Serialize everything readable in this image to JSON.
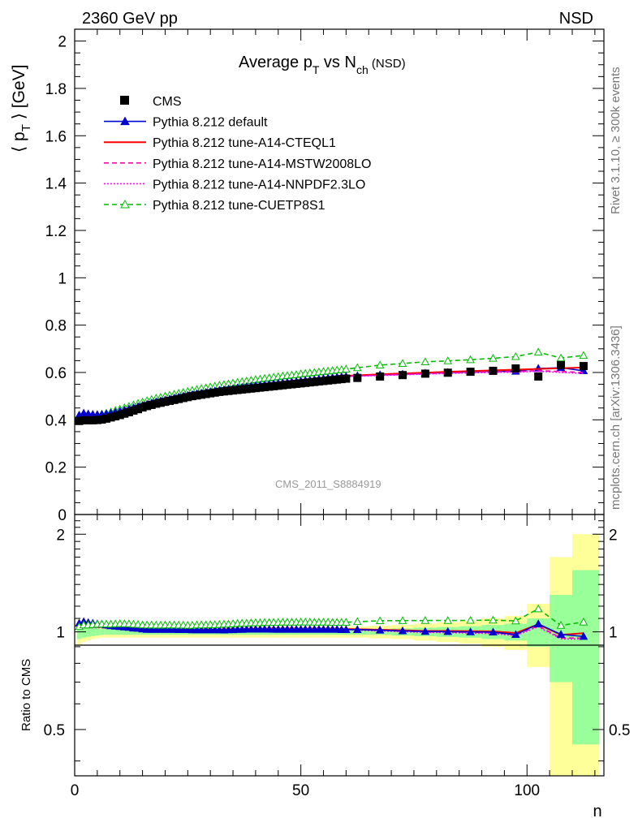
{
  "header": {
    "left": "2360 GeV pp",
    "right": "NSD"
  },
  "side_labels": {
    "rivet": "Rivet 3.1.10, ≥ 300k events",
    "mcplots": "mcplots.cern.ch [arXiv:1306.3436]"
  },
  "chart_data": [
    {
      "type": "scatter",
      "title": "Average pT vs Nch (NSD)",
      "title_parts": {
        "main": "Average p",
        "sub1": "T",
        "mid": " vs N",
        "sub2": "ch",
        "tail": " (NSD)"
      },
      "ylabel": "⟨ pT ⟩ [GeV]",
      "ylabel_parts": {
        "open": "⟨ p",
        "sub": "T",
        "close": " ⟩ [GeV]"
      },
      "xlabel": "n",
      "watermark": "CMS_2011_S8884919",
      "xlim": [
        0,
        117
      ],
      "ylim": [
        0,
        2.05
      ],
      "yticks": [
        {
          "v": 0,
          "label": "0"
        },
        {
          "v": 0.2,
          "label": "0.2"
        },
        {
          "v": 0.4,
          "label": "0.4"
        },
        {
          "v": 0.6,
          "label": "0.6"
        },
        {
          "v": 0.8,
          "label": "0.8"
        },
        {
          "v": 1,
          "label": "1"
        },
        {
          "v": 1.2,
          "label": "1.2"
        },
        {
          "v": 1.4,
          "label": "1.4"
        },
        {
          "v": 1.6,
          "label": "1.6"
        },
        {
          "v": 1.8,
          "label": "1.8"
        },
        {
          "v": 2,
          "label": "2"
        }
      ],
      "x": [
        1,
        2,
        3,
        4,
        5,
        6,
        7,
        8,
        9,
        10,
        11,
        12,
        13,
        14,
        15,
        16,
        17,
        18,
        19,
        20,
        21,
        22,
        23,
        24,
        25,
        26,
        27,
        28,
        29,
        30,
        31,
        32,
        33,
        34,
        35,
        36,
        37,
        38,
        39,
        40,
        41,
        42,
        43,
        44,
        45,
        46,
        47,
        48,
        49,
        50,
        51,
        52,
        53,
        54,
        55,
        56,
        57,
        58,
        59,
        60,
        62.5,
        67.5,
        72.5,
        77.5,
        82.5,
        87.5,
        92.5,
        97.5,
        102.5,
        107.5,
        112.5
      ],
      "legend": [
        {
          "name": "CMS",
          "color": "#000000",
          "style": "data"
        },
        {
          "name": "Pythia 8.212 default",
          "color": "#0000cc",
          "style": "solid-triangle"
        },
        {
          "name": "Pythia 8.212 tune-A14-CTEQL1",
          "color": "#ff0000",
          "style": "solid"
        },
        {
          "name": "Pythia 8.212 tune-A14-MSTW2008LO",
          "color": "#ff00aa",
          "style": "dashed"
        },
        {
          "name": "Pythia 8.212 tune-A14-NNPDF2.3LO",
          "color": "#ff00ff",
          "style": "dotted"
        },
        {
          "name": "Pythia 8.212 tune-CUETP8S1",
          "color": "#00bb00",
          "style": "dashed-open-triangle"
        }
      ],
      "series": [
        {
          "name": "CMS",
          "values": [
            0.395,
            0.398,
            0.398,
            0.398,
            0.399,
            0.401,
            0.405,
            0.41,
            0.415,
            0.42,
            0.426,
            0.432,
            0.439,
            0.445,
            0.452,
            0.458,
            0.463,
            0.468,
            0.472,
            0.476,
            0.48,
            0.484,
            0.488,
            0.492,
            0.496,
            0.5,
            0.503,
            0.506,
            0.509,
            0.512,
            0.515,
            0.518,
            0.52,
            0.522,
            0.524,
            0.526,
            0.528,
            0.53,
            0.532,
            0.534,
            0.536,
            0.538,
            0.54,
            0.542,
            0.544,
            0.546,
            0.548,
            0.55,
            0.552,
            0.554,
            0.556,
            0.558,
            0.56,
            0.562,
            0.564,
            0.566,
            0.568,
            0.57,
            0.572,
            0.574,
            0.577,
            0.583,
            0.589,
            0.595,
            0.599,
            0.603,
            0.607,
            0.617,
            0.583,
            0.631,
            0.627
          ]
        },
        {
          "name": "Pythia 8.212 default",
          "values": [
            0.42,
            0.428,
            0.425,
            0.423,
            0.422,
            0.423,
            0.425,
            0.428,
            0.432,
            0.436,
            0.441,
            0.446,
            0.451,
            0.456,
            0.461,
            0.466,
            0.471,
            0.476,
            0.48,
            0.484,
            0.488,
            0.492,
            0.496,
            0.5,
            0.504,
            0.507,
            0.51,
            0.513,
            0.516,
            0.519,
            0.522,
            0.525,
            0.527,
            0.53,
            0.532,
            0.535,
            0.537,
            0.54,
            0.542,
            0.544,
            0.546,
            0.548,
            0.55,
            0.552,
            0.554,
            0.556,
            0.558,
            0.56,
            0.562,
            0.564,
            0.566,
            0.568,
            0.57,
            0.572,
            0.574,
            0.576,
            0.578,
            0.58,
            0.581,
            0.583,
            0.586,
            0.59,
            0.593,
            0.597,
            0.6,
            0.603,
            0.606,
            0.605,
            0.617,
            0.62,
            0.607
          ]
        },
        {
          "name": "Pythia 8.212 tune-A14-CTEQL1",
          "values": [
            0.405,
            0.412,
            0.412,
            0.412,
            0.413,
            0.415,
            0.418,
            0.422,
            0.426,
            0.431,
            0.436,
            0.441,
            0.447,
            0.453,
            0.458,
            0.464,
            0.469,
            0.474,
            0.478,
            0.483,
            0.487,
            0.491,
            0.495,
            0.499,
            0.503,
            0.507,
            0.51,
            0.514,
            0.517,
            0.52,
            0.523,
            0.526,
            0.529,
            0.531,
            0.534,
            0.536,
            0.539,
            0.541,
            0.544,
            0.546,
            0.548,
            0.55,
            0.553,
            0.555,
            0.557,
            0.559,
            0.561,
            0.563,
            0.565,
            0.567,
            0.569,
            0.571,
            0.573,
            0.575,
            0.577,
            0.579,
            0.581,
            0.583,
            0.584,
            0.586,
            0.588,
            0.592,
            0.596,
            0.599,
            0.603,
            0.606,
            0.609,
            0.612,
            0.615,
            0.618,
            0.621
          ]
        },
        {
          "name": "Pythia 8.212 tune-A14-MSTW2008LO",
          "values": [
            0.404,
            0.411,
            0.411,
            0.411,
            0.412,
            0.414,
            0.417,
            0.421,
            0.425,
            0.43,
            0.435,
            0.44,
            0.446,
            0.452,
            0.457,
            0.463,
            0.468,
            0.473,
            0.477,
            0.482,
            0.486,
            0.49,
            0.494,
            0.498,
            0.502,
            0.506,
            0.509,
            0.513,
            0.516,
            0.519,
            0.522,
            0.525,
            0.528,
            0.53,
            0.533,
            0.535,
            0.538,
            0.54,
            0.543,
            0.545,
            0.547,
            0.549,
            0.552,
            0.554,
            0.556,
            0.558,
            0.56,
            0.562,
            0.564,
            0.566,
            0.568,
            0.57,
            0.572,
            0.574,
            0.576,
            0.578,
            0.58,
            0.582,
            0.583,
            0.585,
            0.586,
            0.589,
            0.592,
            0.595,
            0.598,
            0.601,
            0.603,
            0.604,
            0.608,
            0.604,
            0.6
          ]
        },
        {
          "name": "Pythia 8.212 tune-A14-NNPDF2.3LO",
          "values": [
            0.403,
            0.41,
            0.41,
            0.41,
            0.411,
            0.413,
            0.416,
            0.42,
            0.424,
            0.429,
            0.434,
            0.439,
            0.445,
            0.451,
            0.456,
            0.462,
            0.467,
            0.472,
            0.476,
            0.481,
            0.485,
            0.489,
            0.493,
            0.497,
            0.501,
            0.505,
            0.508,
            0.512,
            0.515,
            0.518,
            0.521,
            0.524,
            0.527,
            0.529,
            0.532,
            0.534,
            0.537,
            0.539,
            0.542,
            0.544,
            0.546,
            0.548,
            0.551,
            0.553,
            0.555,
            0.557,
            0.559,
            0.561,
            0.563,
            0.565,
            0.567,
            0.569,
            0.571,
            0.573,
            0.575,
            0.577,
            0.579,
            0.581,
            0.582,
            0.584,
            0.584,
            0.587,
            0.59,
            0.593,
            0.596,
            0.598,
            0.6,
            0.601,
            0.605,
            0.6,
            0.596
          ]
        },
        {
          "name": "Pythia 8.212 tune-CUETP8S1",
          "values": [
            0.41,
            0.418,
            0.418,
            0.419,
            0.421,
            0.424,
            0.428,
            0.433,
            0.439,
            0.445,
            0.451,
            0.457,
            0.463,
            0.469,
            0.475,
            0.481,
            0.486,
            0.491,
            0.495,
            0.5,
            0.504,
            0.508,
            0.512,
            0.516,
            0.52,
            0.524,
            0.528,
            0.532,
            0.535,
            0.539,
            0.542,
            0.546,
            0.549,
            0.552,
            0.555,
            0.558,
            0.561,
            0.564,
            0.567,
            0.57,
            0.572,
            0.575,
            0.577,
            0.58,
            0.582,
            0.585,
            0.587,
            0.589,
            0.591,
            0.594,
            0.596,
            0.598,
            0.6,
            0.602,
            0.604,
            0.606,
            0.608,
            0.61,
            0.612,
            0.614,
            0.62,
            0.631,
            0.638,
            0.645,
            0.649,
            0.654,
            0.66,
            0.667,
            0.686,
            0.661,
            0.672
          ]
        }
      ]
    },
    {
      "type": "scatter",
      "ylabel": "Ratio to CMS",
      "xlabel": "n",
      "xlim": [
        0,
        117
      ],
      "ylim": [
        0.36,
        2.3
      ],
      "log_y": true,
      "yticks": [
        {
          "v": 0.5,
          "label": "0.5"
        },
        {
          "v": 1,
          "label": "1"
        },
        {
          "v": 2,
          "label": "2"
        }
      ],
      "xticks": [
        {
          "v": 0,
          "label": "0"
        },
        {
          "v": 50,
          "label": "50"
        },
        {
          "v": 100,
          "label": "100"
        }
      ],
      "uncertainty_bands": {
        "colors": {
          "stat": "#99ff99",
          "total": "#ffff99"
        },
        "edges": [
          0.5,
          1.5,
          2.5,
          3.5,
          4.5,
          5.5,
          6.5,
          7.5,
          8.5,
          9.5,
          10.5,
          11.5,
          12.5,
          13.5,
          14.5,
          15.5,
          16.5,
          17.5,
          18.5,
          19.5,
          20.5,
          21.5,
          22.5,
          23.5,
          24.5,
          25.5,
          26.5,
          27.5,
          28.5,
          29.5,
          30.5,
          31.5,
          32.5,
          33.5,
          34.5,
          35.5,
          36.5,
          37.5,
          38.5,
          39.5,
          40.5,
          41.5,
          42.5,
          43.5,
          44.5,
          45.5,
          46.5,
          47.5,
          48.5,
          49.5,
          50.5,
          51.5,
          52.5,
          53.5,
          54.5,
          55.5,
          56.5,
          57.5,
          58.5,
          59.5,
          60.5,
          65,
          70,
          75,
          80,
          85,
          90,
          95,
          100,
          105,
          110,
          116
        ],
        "stat_halfwidth": [
          0.05,
          0.04,
          0.035,
          0.03,
          0.025,
          0.02,
          0.02,
          0.02,
          0.02,
          0.02,
          0.02,
          0.02,
          0.02,
          0.02,
          0.02,
          0.02,
          0.02,
          0.02,
          0.02,
          0.02,
          0.02,
          0.02,
          0.02,
          0.02,
          0.02,
          0.02,
          0.02,
          0.02,
          0.02,
          0.02,
          0.02,
          0.02,
          0.02,
          0.02,
          0.02,
          0.02,
          0.02,
          0.02,
          0.02,
          0.02,
          0.02,
          0.02,
          0.02,
          0.02,
          0.02,
          0.02,
          0.02,
          0.02,
          0.02,
          0.02,
          0.02,
          0.02,
          0.02,
          0.02,
          0.02,
          0.02,
          0.02,
          0.02,
          0.02,
          0.02,
          0.02,
          0.02,
          0.025,
          0.03,
          0.035,
          0.04,
          0.05,
          0.06,
          0.1,
          0.3,
          0.55
        ],
        "total_halfwidth": [
          0.09,
          0.07,
          0.06,
          0.05,
          0.045,
          0.04,
          0.04,
          0.04,
          0.04,
          0.04,
          0.04,
          0.04,
          0.04,
          0.04,
          0.04,
          0.04,
          0.04,
          0.04,
          0.04,
          0.04,
          0.04,
          0.04,
          0.04,
          0.04,
          0.04,
          0.04,
          0.04,
          0.04,
          0.04,
          0.04,
          0.04,
          0.04,
          0.04,
          0.04,
          0.04,
          0.04,
          0.04,
          0.04,
          0.04,
          0.04,
          0.04,
          0.04,
          0.04,
          0.04,
          0.04,
          0.04,
          0.04,
          0.04,
          0.04,
          0.04,
          0.04,
          0.04,
          0.04,
          0.04,
          0.04,
          0.04,
          0.04,
          0.04,
          0.04,
          0.04,
          0.04,
          0.045,
          0.05,
          0.06,
          0.07,
          0.08,
          0.1,
          0.12,
          0.22,
          0.7,
          1.0
        ]
      },
      "ratios": [
        {
          "name": "Pythia 8.212 default",
          "values": [
            1.063,
            1.075,
            1.068,
            1.063,
            1.058,
            1.055,
            1.049,
            1.044,
            1.041,
            1.038,
            1.035,
            1.032,
            1.027,
            1.025,
            1.02,
            1.017,
            1.017,
            1.017,
            1.017,
            1.017,
            1.017,
            1.017,
            1.016,
            1.016,
            1.016,
            1.014,
            1.014,
            1.014,
            1.014,
            1.014,
            1.014,
            1.014,
            1.013,
            1.015,
            1.015,
            1.017,
            1.017,
            1.019,
            1.019,
            1.019,
            1.019,
            1.019,
            1.019,
            1.018,
            1.018,
            1.018,
            1.018,
            1.018,
            1.018,
            1.018,
            1.018,
            1.018,
            1.018,
            1.018,
            1.018,
            1.018,
            1.018,
            1.018,
            1.016,
            1.016,
            1.016,
            1.012,
            1.007,
            1.003,
            1.002,
            1.0,
            0.998,
            0.981,
            1.058,
            0.982,
            0.968
          ]
        },
        {
          "name": "Pythia 8.212 tune-CUETP8S1",
          "values": [
            1.038,
            1.05,
            1.05,
            1.053,
            1.055,
            1.057,
            1.057,
            1.056,
            1.058,
            1.06,
            1.059,
            1.058,
            1.055,
            1.054,
            1.051,
            1.05,
            1.05,
            1.049,
            1.049,
            1.05,
            1.05,
            1.05,
            1.049,
            1.049,
            1.048,
            1.048,
            1.05,
            1.051,
            1.051,
            1.053,
            1.052,
            1.054,
            1.056,
            1.057,
            1.059,
            1.061,
            1.063,
            1.064,
            1.066,
            1.067,
            1.067,
            1.069,
            1.069,
            1.07,
            1.07,
            1.071,
            1.071,
            1.071,
            1.071,
            1.072,
            1.072,
            1.072,
            1.071,
            1.071,
            1.071,
            1.071,
            1.07,
            1.07,
            1.07,
            1.07,
            1.075,
            1.082,
            1.083,
            1.084,
            1.084,
            1.085,
            1.087,
            1.081,
            1.177,
            1.047,
            1.072
          ]
        }
      ]
    }
  ]
}
